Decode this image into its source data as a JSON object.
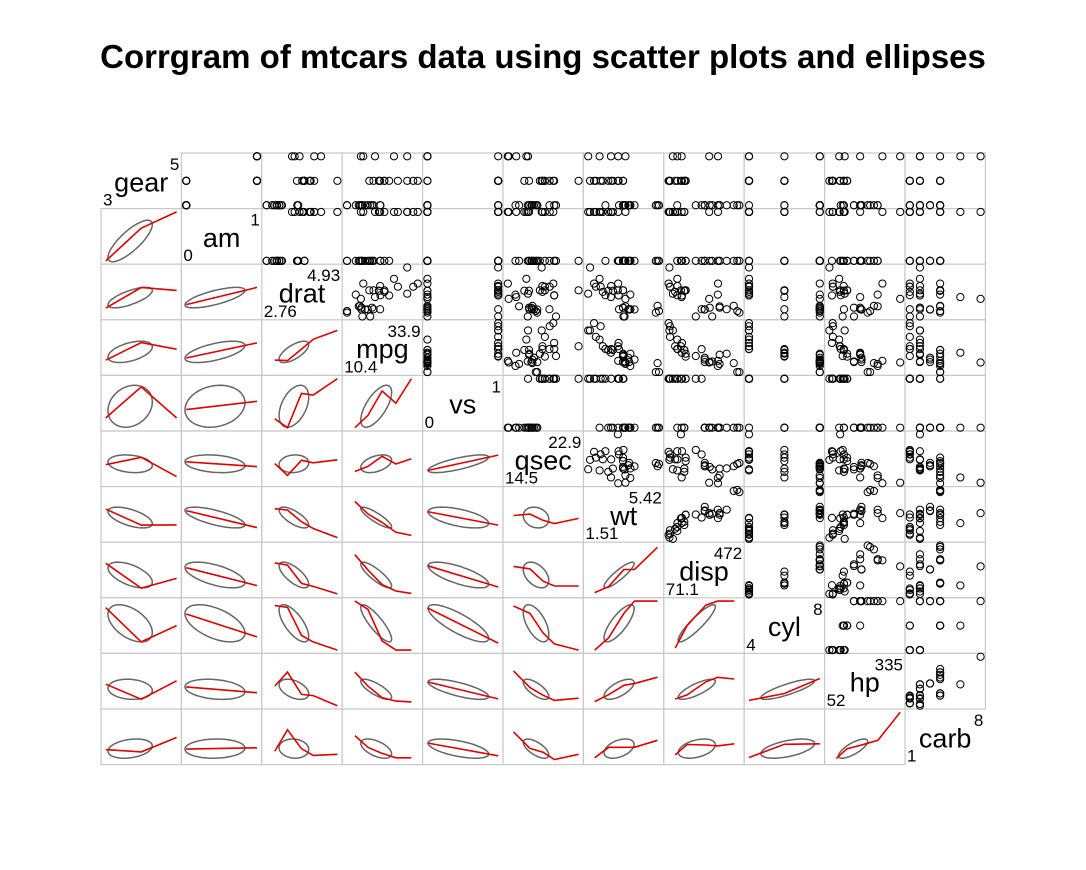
{
  "chart_data": {
    "type": "corrgram",
    "title": "Corrgram of mtcars data using scatter plots and ellipses",
    "lower_panel": "ellipse",
    "upper_panel": "scatter",
    "variables": [
      "gear",
      "am",
      "drat",
      "mpg",
      "vs",
      "qsec",
      "wt",
      "disp",
      "cyl",
      "hp",
      "carb"
    ],
    "ranges": {
      "gear": [
        "3",
        "5"
      ],
      "am": [
        "0",
        "1"
      ],
      "drat": [
        "2.76",
        "4.93"
      ],
      "mpg": [
        "10.4",
        "33.9"
      ],
      "vs": [
        "0",
        "1"
      ],
      "qsec": [
        "14.5",
        "22.9"
      ],
      "wt": [
        "1.51",
        "5.42"
      ],
      "disp": [
        "71.1",
        "472"
      ],
      "cyl": [
        "4",
        "8"
      ],
      "hp": [
        "52",
        "335"
      ],
      "carb": [
        "1",
        "8"
      ]
    },
    "colors": {
      "ellipse": "#666666",
      "smooth": "#e00000",
      "points": "#000000",
      "frame": "#c8c8c8"
    },
    "data": {
      "mpg": [
        21,
        21,
        22.8,
        21.4,
        18.7,
        18.1,
        14.3,
        24.4,
        22.8,
        19.2,
        17.8,
        16.4,
        17.3,
        15.2,
        10.4,
        10.4,
        14.7,
        32.4,
        30.4,
        33.9,
        21.5,
        15.5,
        15.2,
        13.3,
        19.2,
        27.3,
        26,
        30.4,
        15.8,
        19.7,
        15,
        21.4
      ],
      "cyl": [
        6,
        6,
        4,
        6,
        8,
        6,
        8,
        4,
        4,
        6,
        6,
        8,
        8,
        8,
        8,
        8,
        8,
        4,
        4,
        4,
        4,
        8,
        8,
        8,
        8,
        4,
        4,
        4,
        8,
        6,
        8,
        4
      ],
      "disp": [
        160,
        160,
        108,
        258,
        360,
        225,
        360,
        146.7,
        140.8,
        167.6,
        167.6,
        275.8,
        275.8,
        275.8,
        472,
        460,
        440,
        78.7,
        75.7,
        71.1,
        120.1,
        318,
        304,
        350,
        400,
        79,
        120.3,
        95.1,
        351,
        145,
        301,
        121
      ],
      "hp": [
        110,
        110,
        93,
        110,
        175,
        105,
        245,
        62,
        95,
        123,
        123,
        180,
        180,
        180,
        205,
        215,
        230,
        66,
        52,
        65,
        97,
        150,
        150,
        245,
        175,
        66,
        91,
        113,
        264,
        175,
        335,
        109
      ],
      "drat": [
        3.9,
        3.9,
        3.85,
        3.08,
        3.15,
        2.76,
        3.21,
        3.69,
        3.92,
        3.92,
        3.92,
        3.07,
        3.07,
        3.07,
        2.93,
        3,
        3.23,
        4.08,
        4.93,
        4.22,
        3.7,
        2.76,
        3.15,
        3.73,
        3.08,
        4.08,
        4.43,
        3.77,
        4.22,
        3.62,
        3.54,
        4.11
      ],
      "wt": [
        2.62,
        2.875,
        2.32,
        3.215,
        3.44,
        3.46,
        3.57,
        3.19,
        3.15,
        3.44,
        3.44,
        4.07,
        3.73,
        3.78,
        5.25,
        5.424,
        5.345,
        2.2,
        1.615,
        1.835,
        2.465,
        3.52,
        3.435,
        3.84,
        3.845,
        1.935,
        2.14,
        1.513,
        3.17,
        2.77,
        3.57,
        2.78
      ],
      "qsec": [
        16.46,
        17.02,
        18.61,
        19.44,
        17.02,
        20.22,
        15.84,
        20,
        22.9,
        18.3,
        18.9,
        17.4,
        17.6,
        18,
        17.98,
        17.82,
        17.42,
        19.47,
        18.52,
        19.9,
        20.01,
        16.87,
        17.3,
        15.41,
        17.05,
        18.9,
        16.7,
        16.9,
        14.5,
        15.5,
        14.6,
        18.6
      ],
      "vs": [
        0,
        0,
        1,
        1,
        0,
        1,
        0,
        1,
        1,
        1,
        1,
        0,
        0,
        0,
        0,
        0,
        0,
        1,
        1,
        1,
        1,
        0,
        0,
        0,
        0,
        1,
        0,
        1,
        0,
        0,
        0,
        1
      ],
      "am": [
        1,
        1,
        1,
        0,
        0,
        0,
        0,
        0,
        0,
        0,
        0,
        0,
        0,
        0,
        0,
        0,
        0,
        1,
        1,
        1,
        0,
        0,
        0,
        0,
        0,
        1,
        1,
        1,
        1,
        1,
        1,
        1
      ],
      "gear": [
        4,
        4,
        4,
        3,
        3,
        3,
        3,
        4,
        4,
        4,
        4,
        3,
        3,
        3,
        3,
        3,
        3,
        4,
        4,
        4,
        3,
        3,
        3,
        3,
        3,
        4,
        5,
        5,
        5,
        5,
        5,
        4
      ],
      "carb": [
        4,
        4,
        1,
        1,
        2,
        1,
        4,
        2,
        2,
        4,
        4,
        3,
        3,
        3,
        4,
        4,
        4,
        1,
        2,
        1,
        1,
        2,
        2,
        4,
        2,
        1,
        2,
        2,
        4,
        6,
        8,
        2
      ]
    }
  }
}
